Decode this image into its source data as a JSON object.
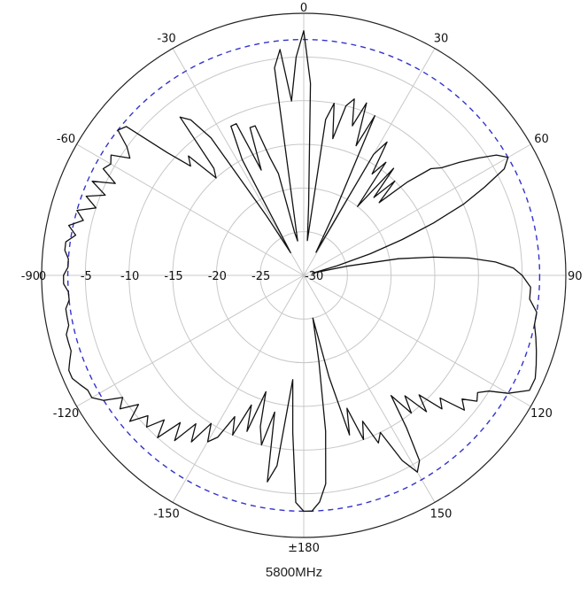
{
  "caption": "5800MHz",
  "chart_data": {
    "type": "polar",
    "angle_unit": "degrees",
    "angle_zero": "top",
    "angle_direction": "clockwise",
    "radial_range": [
      -30,
      0
    ],
    "radial_unit": "dB",
    "grid": true,
    "angle_tick_values": [
      0,
      30,
      60,
      90,
      120,
      150,
      180,
      -150,
      -120,
      -90,
      -60,
      -30
    ],
    "angle_tick_labels": [
      "0",
      "30",
      "60",
      "90",
      "120",
      "150",
      "±180",
      "-150",
      "-120",
      "-90",
      "-60",
      "-30"
    ],
    "radial_tick_values": [
      0,
      -5,
      -10,
      -15,
      -20,
      -25,
      -30
    ],
    "radial_tick_labels": [
      "0",
      "-5",
      "-10",
      "-15",
      "-20",
      "-25",
      "-30"
    ],
    "reference_circle": {
      "value": -3,
      "color": "#3333cc",
      "style": "dashed"
    },
    "colors": {
      "pattern": "#111111",
      "grid": "#c8c8c8",
      "outer": "#222222"
    },
    "series": [
      {
        "color": "#111111",
        "points": [
          [
            0,
            -2
          ],
          [
            2,
            -8
          ],
          [
            4,
            -22
          ],
          [
            6,
            -26
          ],
          [
            8,
            -12
          ],
          [
            10,
            -10
          ],
          [
            12,
            -14
          ],
          [
            14,
            -10
          ],
          [
            16,
            -9
          ],
          [
            18,
            -12
          ],
          [
            20,
            -9
          ],
          [
            22,
            -14
          ],
          [
            24,
            -10
          ],
          [
            26,
            -22
          ],
          [
            28,
            -27
          ],
          [
            30,
            -14
          ],
          [
            32,
            -12
          ],
          [
            34,
            -16
          ],
          [
            36,
            -14
          ],
          [
            38,
            -20
          ],
          [
            40,
            -14
          ],
          [
            42,
            -18
          ],
          [
            44,
            -15
          ],
          [
            46,
            -18
          ],
          [
            48,
            -14
          ],
          [
            50,
            -11
          ],
          [
            52,
            -10
          ],
          [
            54,
            -8
          ],
          [
            56,
            -6
          ],
          [
            58,
            -4
          ],
          [
            60,
            -3
          ],
          [
            62,
            -4
          ],
          [
            64,
            -7
          ],
          [
            66,
            -10
          ],
          [
            68,
            -14
          ],
          [
            70,
            -18
          ],
          [
            72,
            -22
          ],
          [
            74,
            -26
          ],
          [
            76,
            -29
          ],
          [
            78,
            -25
          ],
          [
            80,
            -19
          ],
          [
            82,
            -15
          ],
          [
            84,
            -11
          ],
          [
            86,
            -8
          ],
          [
            88,
            -6
          ],
          [
            90,
            -5
          ],
          [
            93,
            -4
          ],
          [
            96,
            -4
          ],
          [
            99,
            -3
          ],
          [
            102,
            -3
          ],
          [
            105,
            -2.5
          ],
          [
            108,
            -2
          ],
          [
            111,
            -1.5
          ],
          [
            114,
            -1
          ],
          [
            117,
            -1
          ],
          [
            120,
            -3
          ],
          [
            122,
            -5
          ],
          [
            124,
            -6
          ],
          [
            126,
            -5.5
          ],
          [
            128,
            -7
          ],
          [
            130,
            -6
          ],
          [
            132,
            -9
          ],
          [
            134,
            -8
          ],
          [
            136,
            -11
          ],
          [
            138,
            -9
          ],
          [
            140,
            -12
          ],
          [
            142,
            -10
          ],
          [
            144,
            -13
          ],
          [
            146,
            -9
          ],
          [
            148,
            -5
          ],
          [
            150,
            -4
          ],
          [
            152,
            -6
          ],
          [
            154,
            -10
          ],
          [
            156,
            -9
          ],
          [
            158,
            -12
          ],
          [
            160,
            -10
          ],
          [
            162,
            -14
          ],
          [
            164,
            -11
          ],
          [
            166,
            -18
          ],
          [
            168,
            -25
          ],
          [
            170,
            -20
          ],
          [
            172,
            -12
          ],
          [
            174,
            -6
          ],
          [
            176,
            -4
          ],
          [
            178,
            -3
          ],
          [
            180,
            -3
          ],
          [
            182,
            -4
          ],
          [
            184,
            -12
          ],
          [
            186,
            -18
          ],
          [
            188,
            -8
          ],
          [
            190,
            -6
          ],
          [
            192,
            -14
          ],
          [
            194,
            -10
          ],
          [
            196,
            -12
          ],
          [
            198,
            -16
          ],
          [
            200,
            -11
          ],
          [
            202,
            -14
          ],
          [
            204,
            -10
          ],
          [
            206,
            -12
          ],
          [
            208,
            -9
          ],
          [
            210,
            -8
          ],
          [
            212,
            -10
          ],
          [
            214,
            -7
          ],
          [
            216,
            -9
          ],
          [
            218,
            -6
          ],
          [
            220,
            -8
          ],
          [
            222,
            -5
          ],
          [
            224,
            -7
          ],
          [
            226,
            -5
          ],
          [
            228,
            -6
          ],
          [
            230,
            -4
          ],
          [
            232,
            -6
          ],
          [
            234,
            -4
          ],
          [
            236,
            -5
          ],
          [
            238,
            -3
          ],
          [
            240,
            -2
          ],
          [
            242,
            -2
          ],
          [
            244,
            -1.5
          ],
          [
            246,
            -1
          ],
          [
            248,
            -1
          ],
          [
            250,
            -1.5
          ],
          [
            252,
            -2
          ],
          [
            254,
            -2
          ],
          [
            256,
            -2
          ],
          [
            258,
            -2.5
          ],
          [
            260,
            -2.5
          ],
          [
            262,
            -2.5
          ],
          [
            264,
            -3
          ],
          [
            266,
            -3
          ],
          [
            268,
            -2.5
          ],
          [
            270,
            -2.5
          ],
          [
            272,
            -3
          ],
          [
            274,
            -3
          ],
          [
            276,
            -2.5
          ],
          [
            278,
            -2.5
          ],
          [
            280,
            -3.5
          ],
          [
            282,
            -2.5
          ],
          [
            284,
            -4
          ],
          [
            286,
            -3
          ],
          [
            288,
            -5
          ],
          [
            290,
            -3.5
          ],
          [
            292,
            -5.5
          ],
          [
            294,
            -3.5
          ],
          [
            296,
            -6
          ],
          [
            298,
            -4
          ],
          [
            300,
            -4.5
          ],
          [
            302,
            -4
          ],
          [
            304,
            -6
          ],
          [
            306,
            -5
          ],
          [
            308,
            -3
          ],
          [
            310,
            -3.5
          ],
          [
            312,
            -9
          ],
          [
            314,
            -12
          ],
          [
            316,
            -11
          ],
          [
            318,
            -15
          ],
          [
            320,
            -14
          ],
          [
            322,
            -7
          ],
          [
            324,
            -8
          ],
          [
            326,
            -11
          ],
          [
            328,
            -22
          ],
          [
            330,
            -27
          ],
          [
            332,
            -15
          ],
          [
            334,
            -11
          ],
          [
            336,
            -11
          ],
          [
            338,
            -17
          ],
          [
            340,
            -12
          ],
          [
            342,
            -12
          ],
          [
            344,
            -16
          ],
          [
            346,
            -18
          ],
          [
            348,
            -25
          ],
          [
            350,
            -26
          ],
          [
            352,
            -6
          ],
          [
            354,
            -4
          ],
          [
            356,
            -10
          ],
          [
            358,
            -5
          ],
          [
            360,
            -2
          ]
        ]
      }
    ]
  }
}
